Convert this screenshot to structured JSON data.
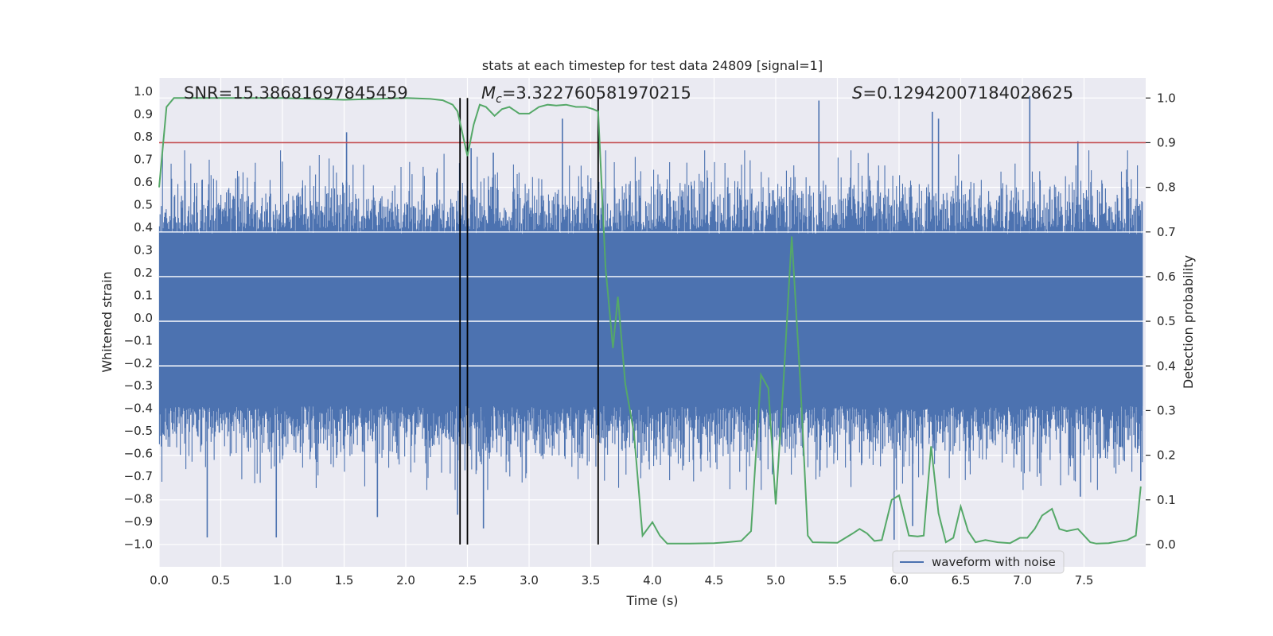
{
  "chart_data": {
    "type": "line",
    "title": "stats at each timestep for test data 24809 [signal=1]",
    "xlabel": "Time (s)",
    "ylabel_left": "Whitened strain",
    "ylabel_right": "Detection probability",
    "xlim": [
      0.0,
      8.0
    ],
    "ylim_left": [
      -1.1,
      1.06
    ],
    "ylim_right": [
      -0.05,
      1.045
    ],
    "x_ticks": [
      0.0,
      0.5,
      1.0,
      1.5,
      2.0,
      2.5,
      3.0,
      3.5,
      4.0,
      4.5,
      5.0,
      5.5,
      6.0,
      6.5,
      7.0,
      7.5
    ],
    "x_tick_labels": [
      "0.0",
      "0.5",
      "1.0",
      "1.5",
      "2.0",
      "2.5",
      "3.0",
      "3.5",
      "4.0",
      "4.5",
      "5.0",
      "5.5",
      "6.0",
      "6.5",
      "7.0",
      "7.5"
    ],
    "y_left_ticks": [
      1.0,
      0.9,
      0.8,
      0.7,
      0.6,
      0.5,
      0.4,
      0.3,
      0.2,
      0.1,
      0.0,
      -0.1,
      -0.2,
      -0.3,
      -0.4,
      -0.5,
      -0.6,
      -0.7,
      -0.8,
      -0.9,
      -1.0
    ],
    "y_left_tick_labels": [
      "1.0",
      "0.9",
      "0.8",
      "0.7",
      "0.6",
      "0.5",
      "0.4",
      "0.3",
      "0.2",
      "0.1",
      "0.0",
      "−0.1",
      "−0.2",
      "−0.3",
      "−0.4",
      "−0.5",
      "−0.6",
      "−0.7",
      "−0.8",
      "−0.9",
      "−1.0"
    ],
    "y_right_ticks": [
      1.0,
      0.9,
      0.8,
      0.7,
      0.6,
      0.5,
      0.4,
      0.3,
      0.2,
      0.1,
      0.0
    ],
    "y_right_tick_labels": [
      "1.0",
      "0.9",
      "0.8",
      "0.7",
      "0.6",
      "0.5",
      "0.4",
      "0.3",
      "0.2",
      "0.1",
      "0.0"
    ],
    "annotations": {
      "snr": "SNR=15.38681697845459",
      "mc_symbol": "M",
      "mc_subscript": "c",
      "mc_value": "=3.322760581970215",
      "s_symbol": "S",
      "s_value": "=0.12942007184028625"
    },
    "threshold": 0.9,
    "event_markers_x": [
      2.44,
      2.5,
      3.56
    ],
    "legend": [
      "waveform with noise"
    ],
    "legend_position": "lower-right",
    "waveform": {
      "name": "waveform with noise",
      "color": "#4c72b0",
      "dense_band": [
        -0.39,
        0.37
      ],
      "sample_count": 1600,
      "seed": 24809,
      "spikes": [
        {
          "x": 0.39,
          "y": -0.97
        },
        {
          "x": 0.95,
          "y": -0.97
        },
        {
          "x": 1.52,
          "y": 0.82
        },
        {
          "x": 1.77,
          "y": -0.88
        },
        {
          "x": 2.42,
          "y": -0.87
        },
        {
          "x": 2.53,
          "y": 0.75
        },
        {
          "x": 2.63,
          "y": -0.93
        },
        {
          "x": 2.71,
          "y": 0.73
        },
        {
          "x": 3.27,
          "y": 0.88
        },
        {
          "x": 5.35,
          "y": 0.96
        },
        {
          "x": 5.96,
          "y": -0.98
        },
        {
          "x": 6.11,
          "y": -0.92
        },
        {
          "x": 6.27,
          "y": 0.91
        },
        {
          "x": 6.32,
          "y": 0.88
        },
        {
          "x": 7.06,
          "y": 0.98
        },
        {
          "x": 7.45,
          "y": 0.78
        },
        {
          "x": 7.47,
          "y": -0.79
        },
        {
          "x": 7.96,
          "y": -0.72
        }
      ]
    },
    "probability": {
      "name": "detection probability",
      "color": "#55a868",
      "x": [
        0.0,
        0.06,
        0.12,
        0.3,
        0.6,
        1.0,
        1.5,
        2.0,
        2.2,
        2.3,
        2.38,
        2.42,
        2.46,
        2.5,
        2.55,
        2.6,
        2.65,
        2.72,
        2.78,
        2.84,
        2.92,
        3.0,
        3.08,
        3.15,
        3.22,
        3.3,
        3.38,
        3.46,
        3.52,
        3.56,
        3.62,
        3.68,
        3.72,
        3.78,
        3.85,
        3.92,
        4.0,
        4.06,
        4.12,
        4.3,
        4.5,
        4.6,
        4.72,
        4.8,
        4.88,
        4.94,
        5.0,
        5.06,
        5.13,
        5.2,
        5.26,
        5.3,
        5.5,
        5.62,
        5.68,
        5.74,
        5.8,
        5.86,
        5.94,
        6.0,
        6.08,
        6.15,
        6.2,
        6.26,
        6.32,
        6.38,
        6.44,
        6.5,
        6.56,
        6.62,
        6.7,
        6.8,
        6.9,
        6.98,
        7.04,
        7.1,
        7.16,
        7.24,
        7.3,
        7.36,
        7.45,
        7.55,
        7.6,
        7.7,
        7.85,
        7.92,
        7.96
      ],
      "y": [
        0.8,
        0.98,
        1.0,
        1.0,
        1.0,
        1.0,
        0.996,
        1.0,
        0.998,
        0.995,
        0.985,
        0.97,
        0.92,
        0.87,
        0.94,
        0.985,
        0.98,
        0.96,
        0.975,
        0.98,
        0.965,
        0.965,
        0.98,
        0.985,
        0.983,
        0.985,
        0.98,
        0.98,
        0.975,
        0.97,
        0.62,
        0.44,
        0.555,
        0.36,
        0.25,
        0.02,
        0.05,
        0.02,
        0.002,
        0.002,
        0.003,
        0.005,
        0.008,
        0.03,
        0.38,
        0.35,
        0.09,
        0.35,
        0.69,
        0.36,
        0.02,
        0.005,
        0.004,
        0.024,
        0.035,
        0.025,
        0.008,
        0.01,
        0.1,
        0.11,
        0.02,
        0.018,
        0.02,
        0.22,
        0.07,
        0.005,
        0.015,
        0.085,
        0.03,
        0.005,
        0.01,
        0.005,
        0.003,
        0.015,
        0.015,
        0.035,
        0.065,
        0.08,
        0.035,
        0.03,
        0.035,
        0.005,
        0.002,
        0.003,
        0.01,
        0.02,
        0.13
      ]
    }
  }
}
